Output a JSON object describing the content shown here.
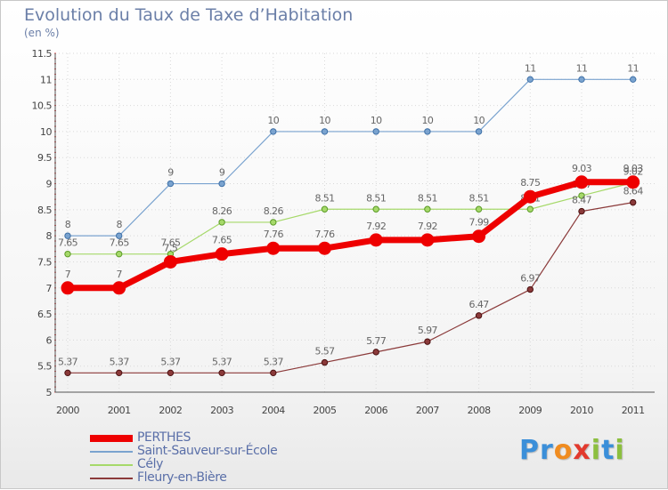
{
  "title": "Evolution du Taux de Taxe d’Habitation",
  "subtitle": "(en %)",
  "logo": {
    "letters": [
      {
        "ch": "P",
        "color": "#3b8fd9"
      },
      {
        "ch": "r",
        "color": "#3b8fd9"
      },
      {
        "ch": "o",
        "color": "#f08c20"
      },
      {
        "ch": "x",
        "color": "#e23a2e"
      },
      {
        "ch": "i",
        "color": "#8cbf3f"
      },
      {
        "ch": "t",
        "color": "#3b8fd9"
      },
      {
        "ch": "i",
        "color": "#8cbf3f"
      }
    ]
  },
  "chart_data": {
    "type": "line",
    "title": "Evolution du Taux de Taxe d’Habitation",
    "ylabel": "(en %)",
    "xlabel": "",
    "x": [
      "2000",
      "2001",
      "2002",
      "2003",
      "2004",
      "2005",
      "2006",
      "2007",
      "2008",
      "2009",
      "2010",
      "2011"
    ],
    "ylim": [
      5,
      11.5
    ],
    "yticks": [
      "5",
      "5.5",
      "6",
      "6.5",
      "7",
      "7.5",
      "8",
      "8.5",
      "9",
      "9.5",
      "10",
      "10.5",
      "11",
      "11.5"
    ],
    "grid": true,
    "legend_position": "bottom-left",
    "series": [
      {
        "name": "PERTHES",
        "color": "#ee0000",
        "values": [
          7,
          7,
          7.5,
          7.65,
          7.76,
          7.76,
          7.92,
          7.92,
          7.99,
          8.75,
          9.03,
          9.03
        ],
        "labels": [
          "7",
          "7",
          "7.5",
          "7.65",
          "7.76",
          "7.76",
          "7.92",
          "7.92",
          "7.99",
          "8.75",
          "9.03",
          "9.03"
        ]
      },
      {
        "name": "Saint-Sauveur-sur-École",
        "color": "#7aa3cf",
        "values": [
          8,
          8,
          9,
          9,
          10,
          10,
          10,
          10,
          10,
          11,
          11,
          11
        ],
        "labels": [
          "8",
          "8",
          "9",
          "9",
          "10",
          "10",
          "10",
          "10",
          "10",
          "11",
          "11",
          "11"
        ]
      },
      {
        "name": "Cély",
        "color": "#a6d96a",
        "values": [
          7.65,
          7.65,
          7.65,
          8.26,
          8.26,
          8.51,
          8.51,
          8.51,
          8.51,
          8.51,
          8.77,
          9.02
        ],
        "labels": [
          "7.65",
          "7.65",
          "7.65",
          "8.26",
          "8.26",
          "8.51",
          "8.51",
          "8.51",
          "8.51",
          "8.51",
          "8.77",
          "9.02"
        ]
      },
      {
        "name": "Fleury-en-Bière",
        "color": "#8b3a3a",
        "values": [
          5.37,
          5.37,
          5.37,
          5.37,
          5.37,
          5.57,
          5.77,
          5.97,
          6.47,
          6.97,
          8.47,
          8.64
        ],
        "labels": [
          "5.37",
          "5.37",
          "5.37",
          "5.37",
          "5.37",
          "5.57",
          "5.77",
          "5.97",
          "6.47",
          "6.97",
          "8.47",
          "8.64"
        ]
      }
    ]
  }
}
